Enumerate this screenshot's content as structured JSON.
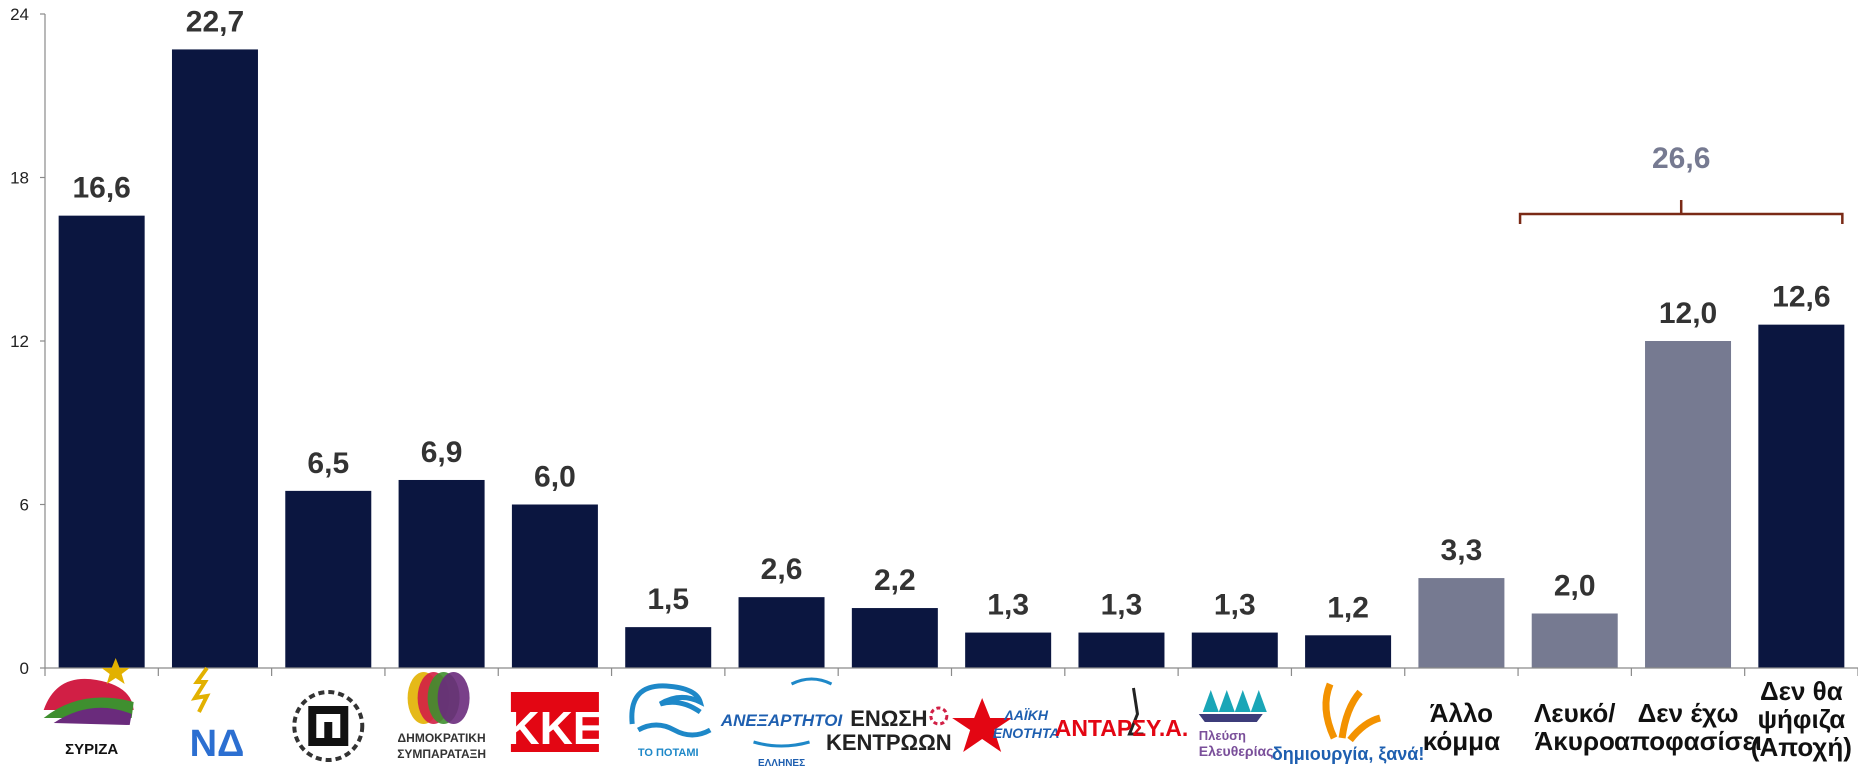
{
  "chart_data": {
    "type": "bar",
    "ylim": [
      0,
      24
    ],
    "yticks": [
      0,
      6,
      12,
      18,
      24
    ],
    "grid": false,
    "colors": {
      "party": "#0b1640",
      "other": "#767a91",
      "group_total": "#767a91",
      "bracket": "#7a2a16",
      "value_text": "#333333"
    },
    "categories": [
      {
        "label": "ΣΥΡΙΖΑ",
        "kind": "logo",
        "value": 16.6,
        "display": "16,6",
        "color": "party",
        "logo": "syriza-logo"
      },
      {
        "label": "ΝΔ",
        "kind": "logo",
        "value": 22.7,
        "display": "22,7",
        "color": "party",
        "logo": "nd-logo"
      },
      {
        "label": "",
        "kind": "logo",
        "value": 6.5,
        "display": "6,5",
        "color": "party",
        "logo": "golden-dawn-logo"
      },
      {
        "label": "ΔΗΜΟΚΡΑΤΙΚΗ ΣΥΜΠΑΡΑΤΑΞΗ",
        "kind": "logo",
        "value": 6.9,
        "display": "6,9",
        "color": "party",
        "logo": "dimokratiki-symparataxi-logo"
      },
      {
        "label": "ΚΚΕ",
        "kind": "logo",
        "value": 6.0,
        "display": "6,0",
        "color": "party",
        "logo": "kke-logo"
      },
      {
        "label": "ΤΟ ΠΟΤΑΜΙ",
        "kind": "logo",
        "value": 1.5,
        "display": "1,5",
        "color": "party",
        "logo": "potami-logo"
      },
      {
        "label": "ΑΝΕΞΑΡΤΗΤΟΙ ΕΛΛΗΝΕΣ",
        "kind": "logo",
        "value": 2.6,
        "display": "2,6",
        "color": "party",
        "logo": "anel-logo"
      },
      {
        "label": "ΕΝΩΣΗ ΚΕΝΤΡΩΩΝ",
        "kind": "logo",
        "value": 2.2,
        "display": "2,2",
        "color": "party",
        "logo": "enosi-kentroon-logo"
      },
      {
        "label": "ΛΑΪΚΗ ΕΝΟΤΗΤΑ",
        "kind": "logo",
        "value": 1.3,
        "display": "1,3",
        "color": "party",
        "logo": "laiki-enotita-logo"
      },
      {
        "label": "ΑΝΤΑΡΣΥ.Α.",
        "kind": "logo",
        "value": 1.3,
        "display": "1,3",
        "color": "party",
        "logo": "antarsya-logo"
      },
      {
        "label": "Πλεύση Ελευθερίας",
        "kind": "logo",
        "value": 1.3,
        "display": "1,3",
        "color": "party",
        "logo": "plefsi-eleftherias-logo"
      },
      {
        "label": "δημιουργία, ξανά!",
        "kind": "logo",
        "value": 1.2,
        "display": "1,2",
        "color": "party",
        "logo": "dimiourgia-xana-logo"
      },
      {
        "label": "Άλλο κόμμα",
        "lines": [
          "Άλλο",
          "κόμμα"
        ],
        "kind": "text",
        "value": 3.3,
        "display": "3,3",
        "color": "other"
      },
      {
        "label": "Λευκό/ Άκυρο",
        "lines": [
          "Λευκό/",
          "Άκυρο"
        ],
        "kind": "text",
        "value": 2.0,
        "display": "2,0",
        "color": "other"
      },
      {
        "label": "Δεν έχω αποφασίσει",
        "lines": [
          "Δεν έχω",
          "αποφασίσει"
        ],
        "kind": "text",
        "value": 12.0,
        "display": "12,0",
        "color": "other"
      },
      {
        "label": "Δεν θα ψήφιζα (Αποχή)",
        "lines": [
          "Δεν θα",
          "ψήφιζα",
          "(Αποχή)"
        ],
        "kind": "text",
        "value": 12.6,
        "display": "12,6",
        "color": "party"
      }
    ],
    "group_annotation": {
      "text": "26,6",
      "from_index": 13,
      "to_index": 15
    }
  }
}
